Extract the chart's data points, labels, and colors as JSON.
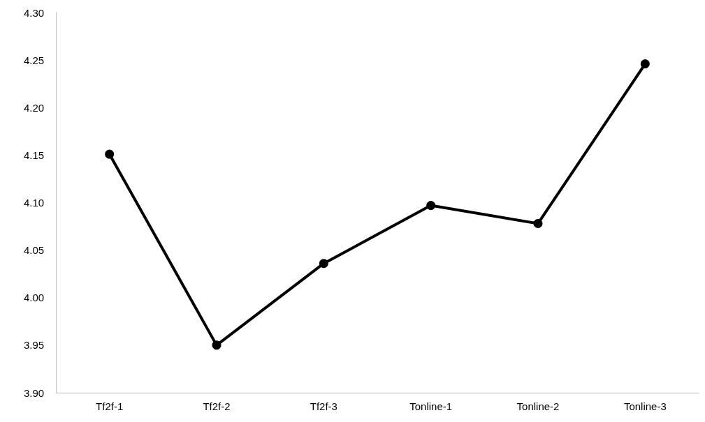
{
  "chart_data": {
    "type": "line",
    "categories": [
      "Tf2f-1",
      "Tf2f-2",
      "Tf2f-3",
      "Tonline-1",
      "Tonline-2",
      "Tonline-3"
    ],
    "series": [
      {
        "color": "#000000",
        "values": [
          4.151,
          3.95,
          4.036,
          4.097,
          4.078,
          4.246
        ]
      }
    ],
    "ylim": [
      3.9,
      4.3
    ],
    "yticks": [
      {
        "value": 3.9,
        "label": "3.90"
      },
      {
        "value": 3.95,
        "label": "3.95"
      },
      {
        "value": 4.0,
        "label": "4.00"
      },
      {
        "value": 4.05,
        "label": "4.05"
      },
      {
        "value": 4.1,
        "label": "4.10"
      },
      {
        "value": 4.15,
        "label": "4.15"
      },
      {
        "value": 4.2,
        "label": "4.20"
      },
      {
        "value": 4.25,
        "label": "4.25"
      },
      {
        "value": 4.3,
        "label": "4.30"
      }
    ],
    "grid": false,
    "marker": "circle",
    "line_style": "solid"
  }
}
